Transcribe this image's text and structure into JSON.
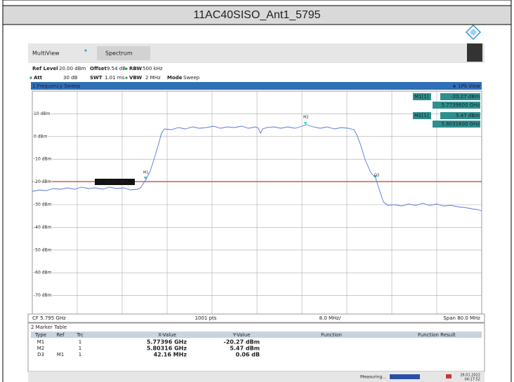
{
  "title": "11AC40SISO_Ant1_5795",
  "tabs": [
    "MultiView",
    "Spectrum"
  ],
  "settings": {
    "ref_level_label": "Ref Level",
    "ref_level": "20.00 dBm",
    "offset_label": "Offset",
    "offset": "9.54 dB",
    "rbw_label": "RBW",
    "rbw": "500 kHz",
    "att_label": "Att",
    "att": "30 dB",
    "swt_label": "SWT",
    "swt": "1.01 ms",
    "vbw_label": "VBW",
    "vbw": "2 MHz",
    "mode_label": "Mode",
    "mode": "Sweep"
  },
  "window": {
    "title": "1 Frequency Sweep",
    "view": "1Pk View"
  },
  "y_axis_labels": [
    "10 dBm",
    "0 dBm",
    "-10 dBm",
    "-20 dBm",
    "-30 dBm",
    "-40 dBm",
    "-50 dBm",
    "-60 dBm",
    "-70 dBm"
  ],
  "marker_readout": [
    {
      "name": "M1[1]",
      "level": "-20.27 dBm",
      "freq": "5.7739600 GHz"
    },
    {
      "name": "M2[1]",
      "level": "5.47 dBm",
      "freq": "5.8031600 GHz"
    }
  ],
  "trace_markers": [
    "M1",
    "M2",
    "D3"
  ],
  "threshold_line": "H1 -20.00 dBm",
  "footer": {
    "center": "CF 5.795 GHz",
    "points": "1001 pts",
    "div": "8.0 MHz/",
    "span": "Span 80.0 MHz"
  },
  "marker_table": {
    "title": "2 Marker Table",
    "columns": [
      "Type",
      "Ref",
      "Trc",
      "X-Value",
      "Y-Value",
      "Function",
      "Function Result"
    ],
    "rows": [
      {
        "type": "M1",
        "trc": "1",
        "x": "5.77396 GHz",
        "y": "-20.27 dBm"
      },
      {
        "type": "M2",
        "trc": "1",
        "x": "5.80316 GHz",
        "y": "5.47 dBm"
      },
      {
        "type": "D3",
        "ref": "M1",
        "trc": "1",
        "x": "42.16 MHz",
        "y": "0.06 dB"
      }
    ]
  },
  "status": {
    "text": "Measuring...",
    "date": "26.01.2022",
    "time": "04:17:52"
  }
}
